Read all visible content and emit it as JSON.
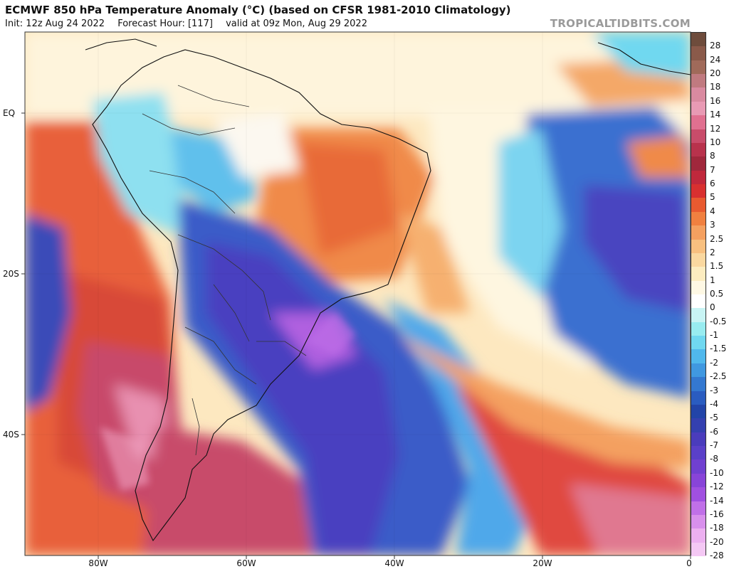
{
  "header": {
    "title": "ECMWF 850 hPa Temperature Anomaly (°C) (based on CFSR 1981-2010 Climatology)",
    "init": "Init: 12z Aug 24 2022",
    "forecast_hour": "Forecast Hour: [117]",
    "valid": "valid at 09z Mon, Aug 29 2022",
    "brand": "TROPICALTIDBITS.COM"
  },
  "axes": {
    "lat_labels": [
      "EQ",
      "20S",
      "40S"
    ],
    "lon_labels": [
      "80W",
      "60W",
      "40W",
      "20W",
      "0"
    ]
  },
  "colorbar": {
    "labels": [
      "28",
      "24",
      "20",
      "18",
      "16",
      "14",
      "12",
      "10",
      "8",
      "7",
      "6",
      "5",
      "4",
      "3",
      "2.5",
      "2",
      "1.5",
      "1",
      "0.5",
      "0",
      "-0.5",
      "-1",
      "-1.5",
      "-2",
      "-2.5",
      "-3",
      "-4",
      "-5",
      "-6",
      "-7",
      "-8",
      "-10",
      "-12",
      "-14",
      "-16",
      "-18",
      "-20",
      "-28"
    ],
    "colors": [
      "#6e4c3c",
      "#8a5a4a",
      "#a06a5a",
      "#c07a80",
      "#d98aa0",
      "#e89ab4",
      "#e07090",
      "#c84c6a",
      "#b8324c",
      "#a0283c",
      "#c0283c",
      "#d83030",
      "#e85a30",
      "#f08040",
      "#f4a060",
      "#f8c080",
      "#fad8a0",
      "#fcecc0",
      "#fef8e4",
      "#ffffff",
      "#c8f4f4",
      "#98ecf0",
      "#70d8f0",
      "#50b8ec",
      "#4098e0",
      "#3478d0",
      "#2a5cc0",
      "#2244a8",
      "#3440b0",
      "#4a3cbc",
      "#5a40c8",
      "#7040d0",
      "#8844d8",
      "#a050e0",
      "#c070e8",
      "#d890ec",
      "#ecb0f0",
      "#f4c8f4"
    ]
  },
  "map": {
    "region": "South America and South Atlantic",
    "anomaly_regions": [
      {
        "name": "warm-south-pacific",
        "anomaly_c": 5
      },
      {
        "name": "strong-warm-patagonia",
        "anomaly_c": 12
      },
      {
        "name": "warm-brazil",
        "anomaly_c": 3
      },
      {
        "name": "cold-subtropical-south-america",
        "anomaly_c": -10
      },
      {
        "name": "cold-south-atlantic-tongue",
        "anomaly_c": -7
      },
      {
        "name": "cold-east-atlantic",
        "anomaly_c": -5
      },
      {
        "name": "warm-southeast-atlantic",
        "anomaly_c": 6
      }
    ]
  }
}
